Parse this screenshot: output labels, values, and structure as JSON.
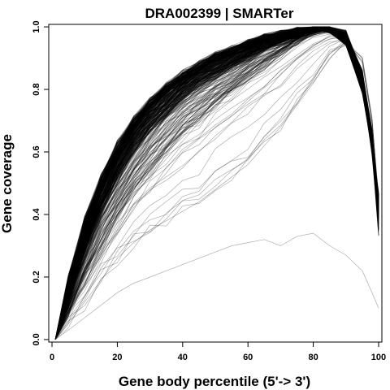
{
  "chart_data": {
    "type": "line",
    "title": "DRA002399 | SMARTer",
    "xlabel": "Gene body percentile (5'-> 3')",
    "ylabel": "Gene coverage",
    "xlim": [
      -1,
      101
    ],
    "ylim": [
      -0.008,
      1.008
    ],
    "xticks": [
      "0",
      "20",
      "40",
      "60",
      "80",
      "100"
    ],
    "yticks": [
      "0.0",
      "0.2",
      "0.4",
      "0.6",
      "0.8",
      "1.0"
    ],
    "grid": false,
    "legend": "none",
    "line_color": "#000000",
    "representative_series": [
      {
        "x": [
          1,
          5,
          10,
          15,
          20,
          25,
          30,
          35,
          40,
          45,
          50,
          55,
          60,
          65,
          70,
          75,
          80,
          85,
          90,
          95,
          98,
          100
        ],
        "values": [
          0.0,
          0.18,
          0.37,
          0.51,
          0.62,
          0.7,
          0.76,
          0.81,
          0.85,
          0.88,
          0.91,
          0.93,
          0.95,
          0.97,
          0.98,
          0.99,
          1.0,
          0.99,
          0.95,
          0.8,
          0.62,
          0.45
        ]
      },
      {
        "x": [
          1,
          5,
          10,
          15,
          20,
          25,
          30,
          35,
          40,
          45,
          50,
          55,
          60,
          65,
          70,
          75,
          80,
          85,
          90,
          95,
          98,
          100
        ],
        "values": [
          0.0,
          0.13,
          0.28,
          0.41,
          0.51,
          0.6,
          0.67,
          0.72,
          0.77,
          0.81,
          0.84,
          0.87,
          0.9,
          0.93,
          0.95,
          0.97,
          0.99,
          1.0,
          0.98,
          0.85,
          0.66,
          0.4
        ]
      },
      {
        "x": [
          1,
          5,
          10,
          15,
          20,
          25,
          30,
          35,
          40,
          45,
          50,
          55,
          60,
          65,
          70,
          75,
          80,
          85,
          90,
          95,
          98,
          100
        ],
        "values": [
          0.0,
          0.09,
          0.2,
          0.3,
          0.39,
          0.47,
          0.54,
          0.6,
          0.66,
          0.7,
          0.75,
          0.79,
          0.83,
          0.87,
          0.91,
          0.95,
          0.98,
          0.99,
          0.97,
          0.82,
          0.6,
          0.35
        ]
      },
      {
        "x": [
          1,
          5,
          10,
          15,
          20,
          25,
          30,
          35,
          40,
          45,
          50,
          55,
          60,
          65,
          70,
          75,
          80,
          85,
          90,
          95,
          98,
          100
        ],
        "values": [
          0.0,
          0.05,
          0.12,
          0.19,
          0.26,
          0.31,
          0.35,
          0.38,
          0.41,
          0.44,
          0.48,
          0.52,
          0.56,
          0.62,
          0.68,
          0.75,
          0.82,
          0.9,
          0.95,
          0.9,
          0.7,
          0.45
        ]
      },
      {
        "x": [
          1,
          5,
          10,
          15,
          20,
          25,
          30,
          35,
          40,
          45,
          50,
          55,
          60,
          65,
          70,
          75,
          80,
          85,
          90,
          95,
          98,
          100
        ],
        "values": [
          0.0,
          0.03,
          0.07,
          0.11,
          0.15,
          0.18,
          0.2,
          0.22,
          0.24,
          0.26,
          0.28,
          0.3,
          0.31,
          0.32,
          0.3,
          0.33,
          0.34,
          0.3,
          0.27,
          0.22,
          0.15,
          0.1
        ]
      }
    ]
  }
}
